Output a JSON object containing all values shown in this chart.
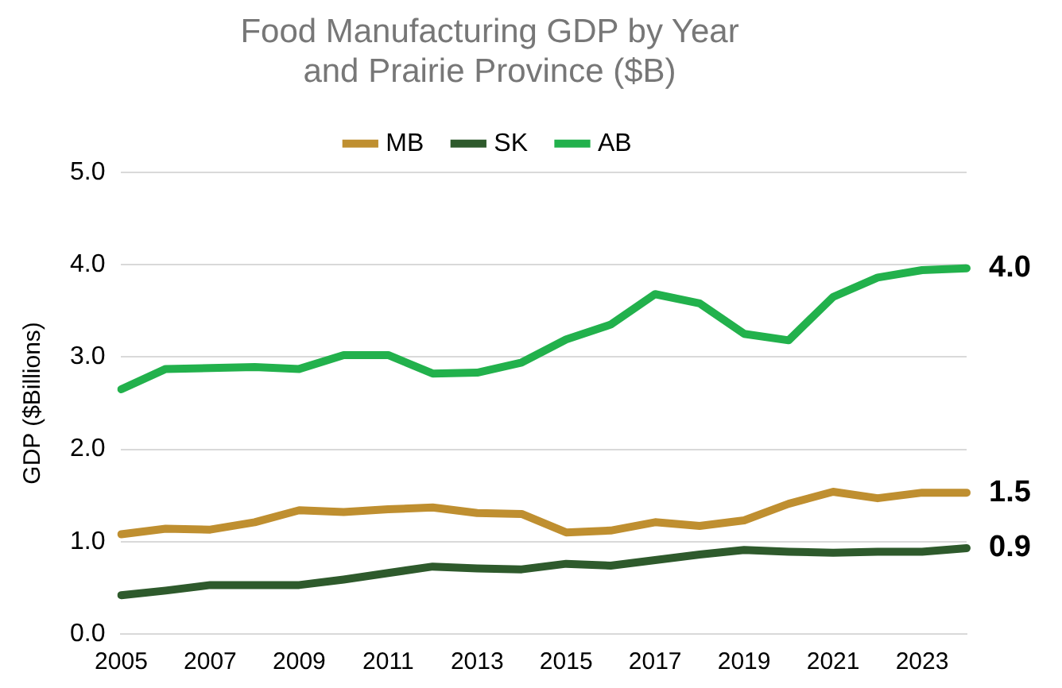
{
  "chart_data": {
    "type": "line",
    "title": "Food Manufacturing GDP by Year\nand Prairie Province ($B)",
    "ylabel": "GDP ($Billions)",
    "categories": [
      "2005",
      null,
      "2007",
      null,
      "2009",
      null,
      "2011",
      null,
      "2013",
      null,
      "2015",
      null,
      "2017",
      null,
      "2019",
      null,
      "2021",
      null,
      "2023",
      null
    ],
    "series": [
      {
        "name": "MB",
        "color": "#bf8f30",
        "values": [
          1.08,
          1.14,
          1.13,
          1.21,
          1.34,
          1.32,
          1.35,
          1.37,
          1.31,
          1.3,
          1.1,
          1.12,
          1.21,
          1.17,
          1.23,
          1.41,
          1.54,
          1.47,
          1.53,
          1.53
        ]
      },
      {
        "name": "SK",
        "color": "#2e5a2c",
        "values": [
          0.42,
          0.47,
          0.53,
          0.53,
          0.53,
          0.59,
          0.66,
          0.73,
          0.71,
          0.7,
          0.76,
          0.74,
          0.8,
          0.86,
          0.91,
          0.89,
          0.88,
          0.89,
          0.89,
          0.93
        ]
      },
      {
        "name": "AB",
        "color": "#22b14c",
        "values": [
          2.65,
          2.87,
          2.88,
          2.89,
          2.87,
          3.02,
          3.02,
          2.82,
          2.83,
          2.94,
          3.19,
          3.35,
          3.68,
          3.58,
          3.25,
          3.18,
          3.65,
          3.86,
          3.94,
          3.96
        ]
      }
    ],
    "ylim": [
      0,
      5
    ],
    "yticks": [
      {
        "value": 0,
        "label": "0.0"
      },
      {
        "value": 1,
        "label": "1.0"
      },
      {
        "value": 2,
        "label": "2.0"
      },
      {
        "value": 3,
        "label": "3.0"
      },
      {
        "value": 4,
        "label": "4.0"
      },
      {
        "value": 5,
        "label": "5.0"
      }
    ],
    "grid": "y",
    "legend": "top",
    "marker": "none",
    "line_style": "solid",
    "annotations": [
      "4.0",
      "1.5",
      "0.9"
    ]
  }
}
